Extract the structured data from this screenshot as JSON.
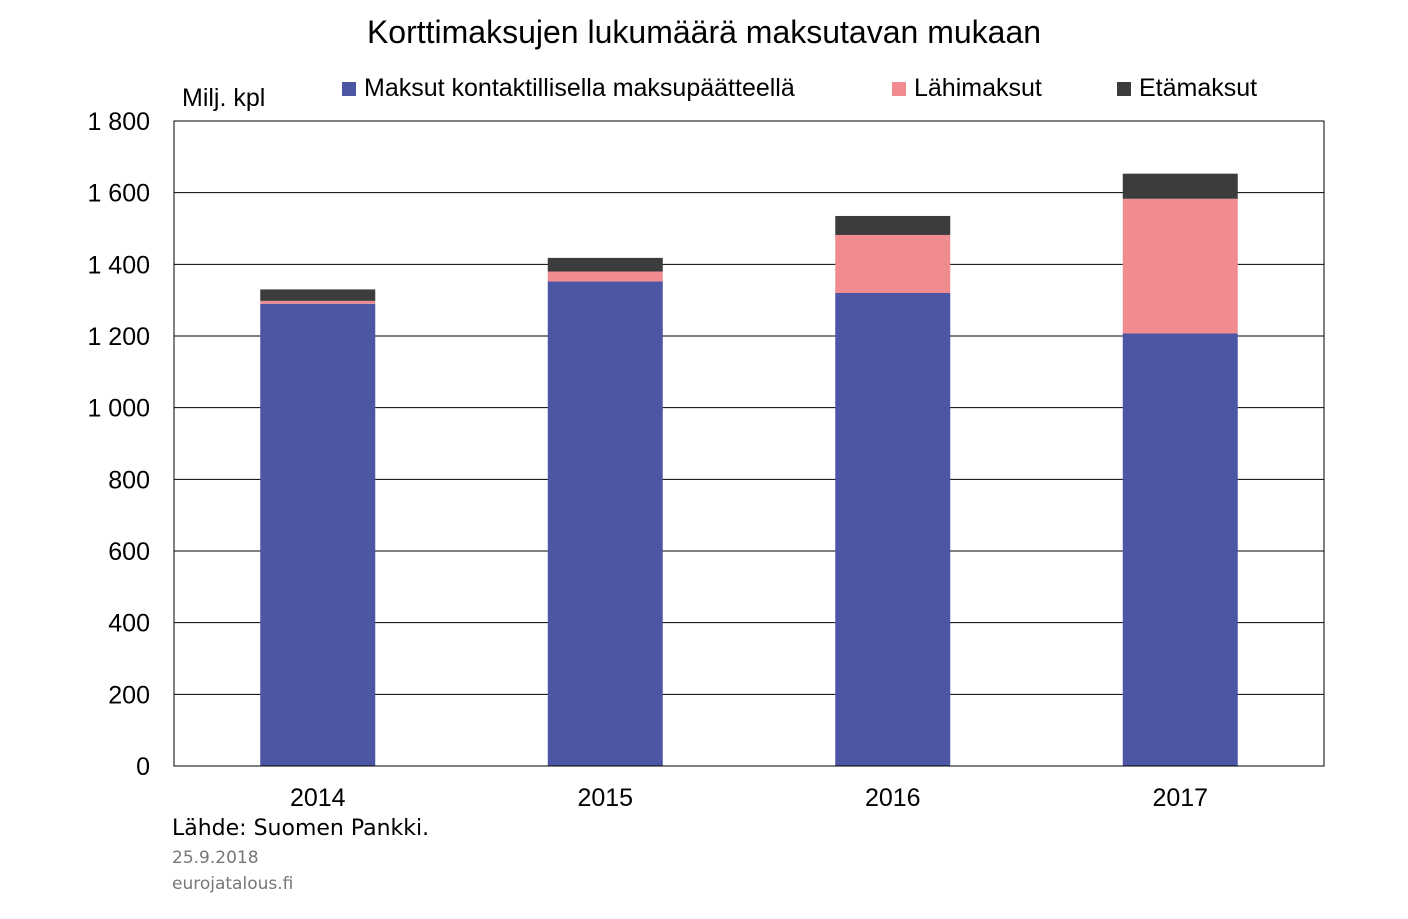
{
  "chart_data": {
    "type": "bar",
    "stacked": true,
    "title": "Korttimaksujen lukumäärä maksutavan mukaan",
    "ylabel": "Milj. kpl",
    "xlabel": "",
    "categories": [
      "2014",
      "2015",
      "2016",
      "2017"
    ],
    "series": [
      {
        "name": "Maksut kontaktillisella maksupäätteellä",
        "color": "#4D55A5",
        "values": [
          1290,
          1352,
          1320,
          1207
        ]
      },
      {
        "name": "Lähimaksut",
        "color": "#F08C90",
        "values": [
          8,
          28,
          162,
          376
        ]
      },
      {
        "name": "Etämaksut",
        "color": "#3C3C3C",
        "values": [
          32,
          38,
          53,
          70
        ]
      }
    ],
    "ylim": [
      0,
      1800
    ],
    "yticks": [
      0,
      200,
      400,
      600,
      800,
      1000,
      1200,
      1400,
      1600,
      1800
    ],
    "ytick_labels": [
      "0",
      "200",
      "400",
      "600",
      "800",
      "1 000",
      "1 200",
      "1 400",
      "1 600",
      "1 800"
    ],
    "grid": true,
    "legend_position": "top"
  },
  "footer": {
    "source": "Lähde: Suomen Pankki.",
    "date": "25.9.2018",
    "site": "eurojatalous.fi"
  }
}
